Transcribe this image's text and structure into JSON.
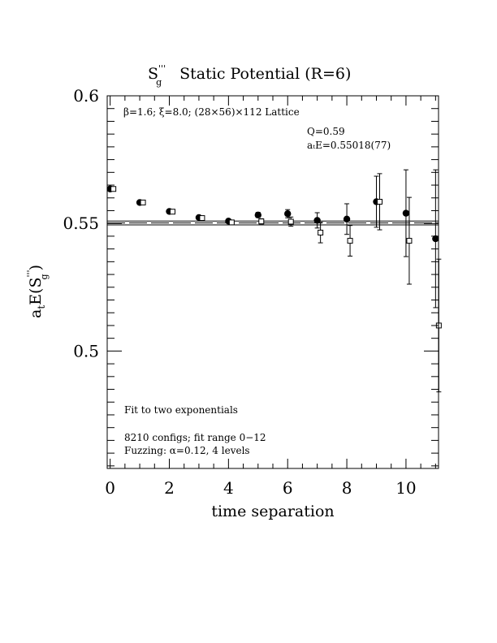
{
  "chart_data": {
    "type": "scatter",
    "title_main": "S",
    "title_sub": "g",
    "title_sup": "'''",
    "title_rest": "Static Potential (R=6)",
    "xlabel": "time separation",
    "ylabel_main": "a",
    "ylabel_sub1": "t",
    "ylabel_mid": "E(S",
    "ylabel_sup": "'''",
    "ylabel_sub2": "g",
    "ylabel_end": ")",
    "xlim": [
      -0.1,
      11.1
    ],
    "ylim": [
      0.454,
      0.6
    ],
    "x_ticks": [
      0,
      2,
      4,
      6,
      8,
      10
    ],
    "x_tick_labels": [
      "0",
      "2",
      "4",
      "6",
      "8",
      "10"
    ],
    "y_ticks": [
      0.5,
      0.55,
      0.6
    ],
    "y_tick_labels": [
      "0.5",
      "0.55",
      "0.6"
    ],
    "annotations": {
      "lattice": "β=1.6; ξ=8.0; (28×56)×112 Lattice",
      "q": "Q=0.59",
      "energy": "aₜE=0.55018(77)",
      "fit": "Fit to two exponentials",
      "configs": "8210 configs; fit range 0−12",
      "fuzzing": "Fuzzing: α=0.12, 4 levels"
    },
    "fit_band": {
      "center": 0.55018,
      "lower": 0.54941,
      "upper": 0.55095
    },
    "series": [
      {
        "marker": "filled-circle",
        "points": [
          {
            "x": 0,
            "y": 0.5635,
            "err": 0.0004
          },
          {
            "x": 1,
            "y": 0.5582,
            "err": 0.0004
          },
          {
            "x": 2,
            "y": 0.5547,
            "err": 0.0004
          },
          {
            "x": 3,
            "y": 0.5523,
            "err": 0.0005
          },
          {
            "x": 4,
            "y": 0.5509,
            "err": 0.0007
          },
          {
            "x": 5,
            "y": 0.5533,
            "err": 0.001
          },
          {
            "x": 6,
            "y": 0.5538,
            "err": 0.0016
          },
          {
            "x": 7,
            "y": 0.5512,
            "err": 0.003
          },
          {
            "x": 8,
            "y": 0.5517,
            "err": 0.006
          },
          {
            "x": 9,
            "y": 0.5585,
            "err": 0.01
          },
          {
            "x": 10,
            "y": 0.554,
            "err": 0.017
          },
          {
            "x": 11,
            "y": 0.544,
            "err": 0.027
          }
        ]
      },
      {
        "marker": "open-square",
        "points": [
          {
            "x": 0,
            "y": 0.5635,
            "err": 0.0004
          },
          {
            "x": 1,
            "y": 0.5582,
            "err": 0.0004
          },
          {
            "x": 2,
            "y": 0.5546,
            "err": 0.0004
          },
          {
            "x": 3,
            "y": 0.5521,
            "err": 0.0005
          },
          {
            "x": 4,
            "y": 0.5504,
            "err": 0.0007
          },
          {
            "x": 5,
            "y": 0.5508,
            "err": 0.001
          },
          {
            "x": 6,
            "y": 0.5507,
            "err": 0.0018
          },
          {
            "x": 7,
            "y": 0.5464,
            "err": 0.004
          },
          {
            "x": 8,
            "y": 0.5432,
            "err": 0.006
          },
          {
            "x": 9,
            "y": 0.5585,
            "err": 0.011
          },
          {
            "x": 10,
            "y": 0.5432,
            "err": 0.017
          },
          {
            "x": 11,
            "y": 0.51,
            "err": 0.026
          }
        ]
      }
    ]
  }
}
